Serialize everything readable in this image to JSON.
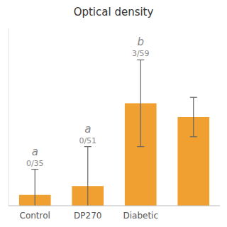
{
  "chart_data": {
    "type": "bar",
    "title": "Optical density",
    "categories": [
      "Control",
      "DP270",
      "Diabetic",
      null
    ],
    "values": [
      0.055,
      0.1,
      0.52,
      0.45
    ],
    "errors": [
      0.13,
      0.2,
      0.22,
      0.1
    ],
    "annotations": [
      "a",
      "a",
      "b",
      null
    ],
    "sub_annotations": [
      "0/35",
      "0/51",
      "3/59",
      null
    ],
    "color": "#F0A030",
    "ylim": [
      0,
      0.9
    ],
    "tick_labels": "x",
    "grid": false
  }
}
